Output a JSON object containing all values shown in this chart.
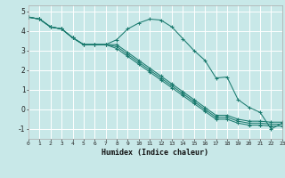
{
  "xlabel": "Humidex (Indice chaleur)",
  "xlim": [
    0,
    23
  ],
  "ylim": [
    -1.5,
    5.3
  ],
  "yticks": [
    -1,
    0,
    1,
    2,
    3,
    4,
    5
  ],
  "xticks": [
    0,
    1,
    2,
    3,
    4,
    5,
    6,
    7,
    8,
    9,
    10,
    11,
    12,
    13,
    14,
    15,
    16,
    17,
    18,
    19,
    20,
    21,
    22,
    23
  ],
  "bg_color": "#c8e8e8",
  "grid_color": "#ffffff",
  "line_color": "#1a7a6e",
  "lines": [
    [
      4.7,
      4.6,
      4.2,
      4.1,
      3.65,
      3.3,
      3.3,
      3.3,
      3.55,
      4.1,
      4.4,
      4.6,
      4.55,
      4.2,
      3.6,
      3.0,
      2.5,
      1.6,
      1.65,
      0.5,
      0.1,
      -0.15,
      -1.0,
      -0.7
    ],
    [
      4.7,
      4.6,
      4.2,
      4.1,
      3.65,
      3.3,
      3.3,
      3.3,
      3.1,
      2.7,
      2.3,
      1.9,
      1.5,
      1.1,
      0.7,
      0.3,
      -0.1,
      -0.5,
      -0.5,
      -0.7,
      -0.8,
      -0.8,
      -0.85,
      -0.85
    ],
    [
      4.7,
      4.6,
      4.2,
      4.1,
      3.65,
      3.3,
      3.3,
      3.3,
      3.2,
      2.8,
      2.4,
      2.0,
      1.6,
      1.2,
      0.8,
      0.4,
      0.0,
      -0.4,
      -0.4,
      -0.6,
      -0.7,
      -0.7,
      -0.75,
      -0.75
    ],
    [
      4.7,
      4.6,
      4.2,
      4.1,
      3.65,
      3.3,
      3.3,
      3.3,
      3.3,
      2.9,
      2.5,
      2.1,
      1.7,
      1.3,
      0.9,
      0.5,
      0.1,
      -0.3,
      -0.3,
      -0.5,
      -0.6,
      -0.6,
      -0.65,
      -0.65
    ]
  ]
}
